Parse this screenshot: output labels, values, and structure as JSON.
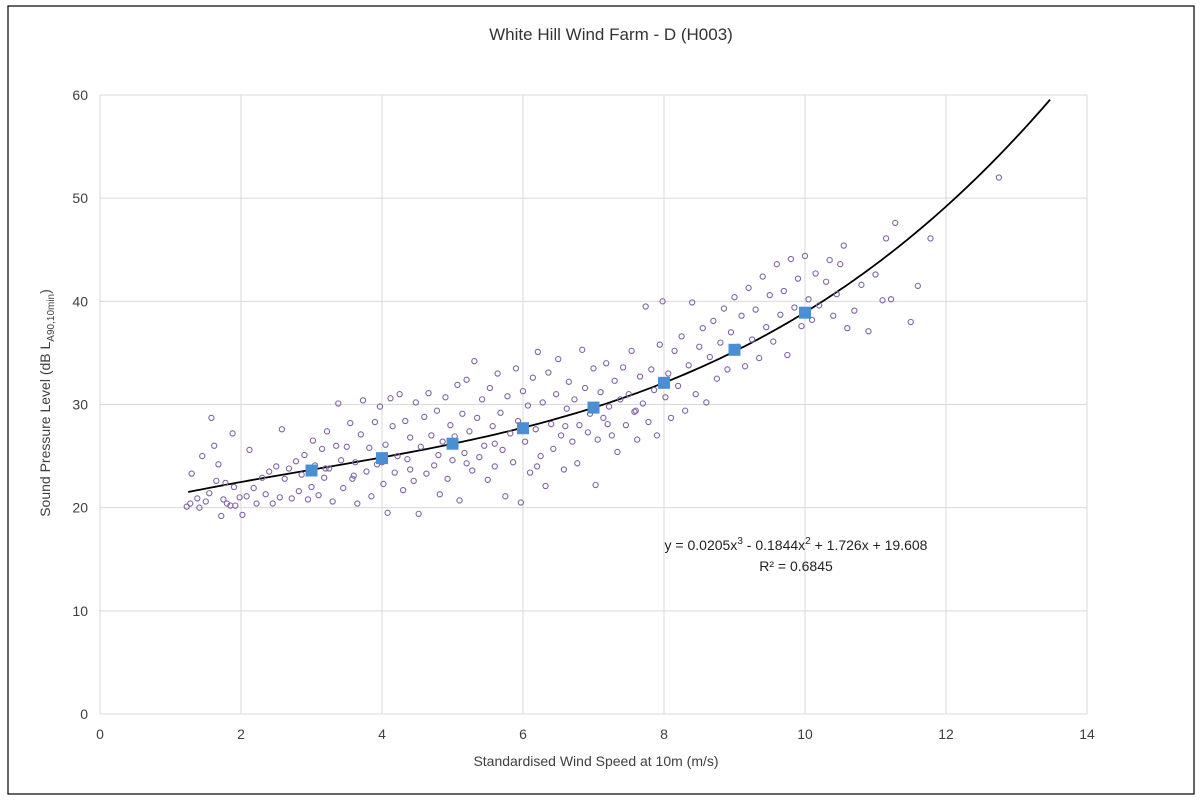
{
  "chart_data": {
    "type": "scatter",
    "title": "White Hill Wind Farm - D (H003)",
    "xlabel": "Standardised Wind Speed at 10m (m/s)",
    "ylabel": {
      "prefix": "Sound Pressure Level (dB L",
      "subscript": "A90,10min",
      "suffix": ")"
    },
    "xlim": [
      0,
      14
    ],
    "ylim": [
      0,
      60
    ],
    "x_ticks": [
      0,
      2,
      4,
      6,
      8,
      10,
      12,
      14
    ],
    "y_ticks": [
      0,
      10,
      20,
      30,
      40,
      50,
      60
    ],
    "grid": true,
    "legend": "none",
    "colors": {
      "scatter": "#8064a2",
      "bin_mean": "#4a8fd4",
      "trend": "#000000",
      "grid": "#d9d9d9",
      "frame": "#000000"
    },
    "series": [
      {
        "marker": "circle-open",
        "points": [
          [
            1.23,
            20.1
          ],
          [
            1.28,
            20.4
          ],
          [
            1.3,
            23.3
          ],
          [
            1.38,
            20.9
          ],
          [
            1.41,
            20.0
          ],
          [
            1.45,
            25.0
          ],
          [
            1.5,
            20.6
          ],
          [
            1.55,
            21.4
          ],
          [
            1.58,
            28.7
          ],
          [
            1.62,
            26.0
          ],
          [
            1.65,
            22.6
          ],
          [
            1.68,
            24.2
          ],
          [
            1.72,
            19.2
          ],
          [
            1.75,
            20.8
          ],
          [
            1.78,
            22.4
          ],
          [
            1.8,
            20.4
          ],
          [
            1.85,
            20.2
          ],
          [
            1.88,
            27.2
          ],
          [
            1.9,
            22.0
          ],
          [
            1.92,
            20.2
          ],
          [
            1.98,
            21.0
          ],
          [
            2.02,
            19.3
          ],
          [
            2.08,
            21.1
          ],
          [
            2.12,
            25.6
          ],
          [
            2.18,
            21.9
          ],
          [
            2.22,
            20.4
          ],
          [
            2.3,
            22.9
          ],
          [
            2.35,
            21.3
          ],
          [
            2.4,
            23.5
          ],
          [
            2.45,
            20.4
          ],
          [
            2.5,
            24.0
          ],
          [
            2.55,
            21.0
          ],
          [
            2.58,
            27.6
          ],
          [
            2.62,
            22.8
          ],
          [
            2.68,
            23.8
          ],
          [
            2.72,
            20.9
          ],
          [
            2.78,
            24.5
          ],
          [
            2.82,
            21.6
          ],
          [
            2.86,
            23.2
          ],
          [
            2.9,
            25.1
          ],
          [
            2.95,
            20.8
          ],
          [
            3.0,
            22.0
          ],
          [
            3.02,
            26.5
          ],
          [
            3.05,
            24.1
          ],
          [
            3.1,
            21.2
          ],
          [
            3.15,
            25.7
          ],
          [
            3.18,
            22.9
          ],
          [
            3.22,
            27.4
          ],
          [
            3.25,
            23.8
          ],
          [
            3.3,
            20.6
          ],
          [
            3.35,
            26.0
          ],
          [
            3.38,
            30.1
          ],
          [
            3.42,
            24.6
          ],
          [
            3.45,
            21.9
          ],
          [
            3.5,
            25.9
          ],
          [
            3.55,
            28.2
          ],
          [
            3.58,
            22.8
          ],
          [
            3.62,
            24.4
          ],
          [
            3.65,
            20.4
          ],
          [
            3.7,
            27.1
          ],
          [
            3.73,
            30.4
          ],
          [
            3.78,
            23.5
          ],
          [
            3.82,
            25.8
          ],
          [
            3.85,
            21.1
          ],
          [
            3.9,
            28.3
          ],
          [
            3.93,
            24.2
          ],
          [
            3.97,
            29.8
          ],
          [
            4.02,
            22.3
          ],
          [
            4.05,
            26.1
          ],
          [
            4.08,
            19.5
          ],
          [
            4.12,
            30.6
          ],
          [
            4.15,
            27.9
          ],
          [
            4.18,
            23.4
          ],
          [
            4.22,
            25.0
          ],
          [
            4.25,
            31.0
          ],
          [
            4.3,
            21.7
          ],
          [
            4.33,
            28.4
          ],
          [
            4.36,
            24.7
          ],
          [
            4.4,
            26.8
          ],
          [
            4.45,
            22.6
          ],
          [
            4.48,
            30.2
          ],
          [
            4.52,
            19.4
          ],
          [
            4.55,
            25.9
          ],
          [
            4.6,
            28.8
          ],
          [
            4.63,
            23.3
          ],
          [
            4.66,
            31.1
          ],
          [
            4.7,
            27.0
          ],
          [
            4.74,
            24.1
          ],
          [
            4.78,
            29.4
          ],
          [
            4.82,
            21.3
          ],
          [
            4.86,
            26.4
          ],
          [
            4.9,
            30.7
          ],
          [
            4.93,
            22.8
          ],
          [
            4.97,
            28.0
          ],
          [
            5.0,
            24.6
          ],
          [
            5.03,
            26.9
          ],
          [
            5.07,
            31.9
          ],
          [
            5.1,
            20.7
          ],
          [
            5.14,
            29.1
          ],
          [
            5.17,
            25.3
          ],
          [
            5.2,
            32.4
          ],
          [
            5.24,
            27.4
          ],
          [
            5.28,
            23.6
          ],
          [
            5.31,
            34.2
          ],
          [
            5.35,
            28.7
          ],
          [
            5.38,
            24.9
          ],
          [
            5.42,
            30.5
          ],
          [
            5.45,
            26.0
          ],
          [
            5.5,
            22.7
          ],
          [
            5.53,
            31.6
          ],
          [
            5.57,
            27.9
          ],
          [
            5.6,
            24.0
          ],
          [
            5.64,
            33.0
          ],
          [
            5.68,
            29.2
          ],
          [
            5.71,
            25.6
          ],
          [
            5.75,
            21.1
          ],
          [
            5.78,
            30.8
          ],
          [
            5.82,
            27.2
          ],
          [
            5.86,
            24.4
          ],
          [
            5.9,
            33.5
          ],
          [
            5.93,
            28.4
          ],
          [
            5.97,
            20.5
          ],
          [
            6.0,
            31.3
          ],
          [
            6.03,
            26.4
          ],
          [
            6.07,
            29.9
          ],
          [
            6.1,
            23.4
          ],
          [
            6.14,
            32.6
          ],
          [
            6.18,
            27.6
          ],
          [
            6.21,
            35.1
          ],
          [
            6.25,
            25.0
          ],
          [
            6.28,
            30.2
          ],
          [
            6.32,
            22.1
          ],
          [
            6.36,
            33.1
          ],
          [
            6.4,
            28.1
          ],
          [
            6.43,
            25.7
          ],
          [
            6.47,
            31.0
          ],
          [
            6.5,
            34.4
          ],
          [
            6.54,
            27.0
          ],
          [
            6.58,
            23.7
          ],
          [
            6.62,
            29.6
          ],
          [
            6.65,
            32.2
          ],
          [
            6.7,
            26.4
          ],
          [
            6.73,
            30.5
          ],
          [
            6.77,
            24.3
          ],
          [
            6.8,
            28.0
          ],
          [
            6.84,
            35.3
          ],
          [
            6.88,
            31.6
          ],
          [
            6.92,
            27.3
          ],
          [
            6.95,
            29.1
          ],
          [
            7.0,
            33.5
          ],
          [
            7.03,
            22.2
          ],
          [
            7.06,
            26.6
          ],
          [
            7.1,
            31.2
          ],
          [
            7.14,
            28.7
          ],
          [
            7.18,
            34.0
          ],
          [
            7.22,
            29.8
          ],
          [
            7.26,
            27.0
          ],
          [
            7.3,
            32.3
          ],
          [
            7.34,
            25.4
          ],
          [
            7.38,
            30.5
          ],
          [
            7.42,
            33.6
          ],
          [
            7.46,
            28.0
          ],
          [
            7.5,
            31.0
          ],
          [
            7.54,
            35.2
          ],
          [
            7.58,
            29.3
          ],
          [
            7.62,
            26.6
          ],
          [
            7.66,
            32.7
          ],
          [
            7.7,
            30.1
          ],
          [
            7.74,
            39.5
          ],
          [
            7.78,
            28.3
          ],
          [
            7.82,
            33.4
          ],
          [
            7.86,
            31.4
          ],
          [
            7.9,
            27.0
          ],
          [
            7.94,
            35.8
          ],
          [
            7.98,
            40.0
          ],
          [
            8.02,
            30.7
          ],
          [
            8.06,
            33.0
          ],
          [
            8.1,
            28.7
          ],
          [
            8.15,
            35.2
          ],
          [
            8.2,
            31.8
          ],
          [
            8.25,
            36.6
          ],
          [
            8.3,
            29.4
          ],
          [
            8.35,
            33.8
          ],
          [
            8.4,
            39.9
          ],
          [
            8.45,
            31.0
          ],
          [
            8.5,
            35.6
          ],
          [
            8.55,
            37.4
          ],
          [
            8.6,
            30.2
          ],
          [
            8.65,
            34.6
          ],
          [
            8.7,
            38.1
          ],
          [
            8.75,
            32.5
          ],
          [
            8.8,
            36.0
          ],
          [
            8.85,
            39.3
          ],
          [
            8.9,
            33.4
          ],
          [
            8.95,
            37.0
          ],
          [
            9.0,
            40.4
          ],
          [
            9.05,
            35.6
          ],
          [
            9.1,
            38.6
          ],
          [
            9.15,
            33.7
          ],
          [
            9.2,
            41.3
          ],
          [
            9.25,
            36.3
          ],
          [
            9.3,
            39.2
          ],
          [
            9.35,
            34.5
          ],
          [
            9.4,
            42.4
          ],
          [
            9.45,
            37.5
          ],
          [
            9.5,
            40.6
          ],
          [
            9.55,
            36.1
          ],
          [
            9.6,
            43.6
          ],
          [
            9.65,
            38.7
          ],
          [
            9.7,
            41.0
          ],
          [
            9.75,
            34.8
          ],
          [
            9.8,
            44.1
          ],
          [
            9.85,
            39.4
          ],
          [
            9.9,
            42.2
          ],
          [
            9.95,
            37.6
          ],
          [
            10.0,
            44.4
          ],
          [
            10.05,
            40.2
          ],
          [
            10.1,
            38.2
          ],
          [
            10.15,
            42.7
          ],
          [
            10.2,
            39.6
          ],
          [
            10.3,
            41.9
          ],
          [
            10.35,
            44.0
          ],
          [
            10.4,
            38.6
          ],
          [
            10.45,
            40.7
          ],
          [
            10.5,
            43.6
          ],
          [
            10.55,
            45.4
          ],
          [
            10.6,
            37.4
          ],
          [
            10.7,
            39.1
          ],
          [
            10.8,
            41.6
          ],
          [
            10.9,
            37.1
          ],
          [
            11.0,
            42.6
          ],
          [
            11.1,
            40.1
          ],
          [
            11.15,
            46.1
          ],
          [
            11.22,
            40.2
          ],
          [
            11.28,
            47.6
          ],
          [
            11.5,
            38.0
          ],
          [
            11.6,
            41.5
          ],
          [
            11.78,
            46.1
          ],
          [
            12.75,
            52.0
          ],
          [
            3.2,
            23.8
          ],
          [
            3.6,
            23.1
          ],
          [
            4.0,
            24.4
          ],
          [
            4.4,
            23.7
          ],
          [
            4.8,
            25.1
          ],
          [
            5.2,
            24.3
          ],
          [
            5.6,
            26.2
          ],
          [
            6.2,
            24.0
          ],
          [
            6.6,
            27.9
          ],
          [
            7.2,
            28.1
          ],
          [
            7.6,
            29.4
          ]
        ]
      },
      {
        "marker": "square",
        "points": [
          [
            3,
            23.6
          ],
          [
            4,
            24.8
          ],
          [
            5,
            26.2
          ],
          [
            6,
            27.7
          ],
          [
            7,
            29.7
          ],
          [
            8,
            32.1
          ],
          [
            9,
            35.3
          ],
          [
            10,
            38.9
          ]
        ]
      }
    ],
    "trendline": {
      "coefficients": [
        0.0205,
        -0.1844,
        1.726,
        19.608
      ],
      "x_range": [
        1.25,
        13.6
      ]
    },
    "annotations": {
      "equation": {
        "base": "y = 0.0205x",
        "e1": "3",
        "mid1": " - 0.1844x",
        "e2": "2",
        "rest": " + 1.726x + 19.608"
      },
      "r_squared": "R² = 0.6845"
    }
  }
}
